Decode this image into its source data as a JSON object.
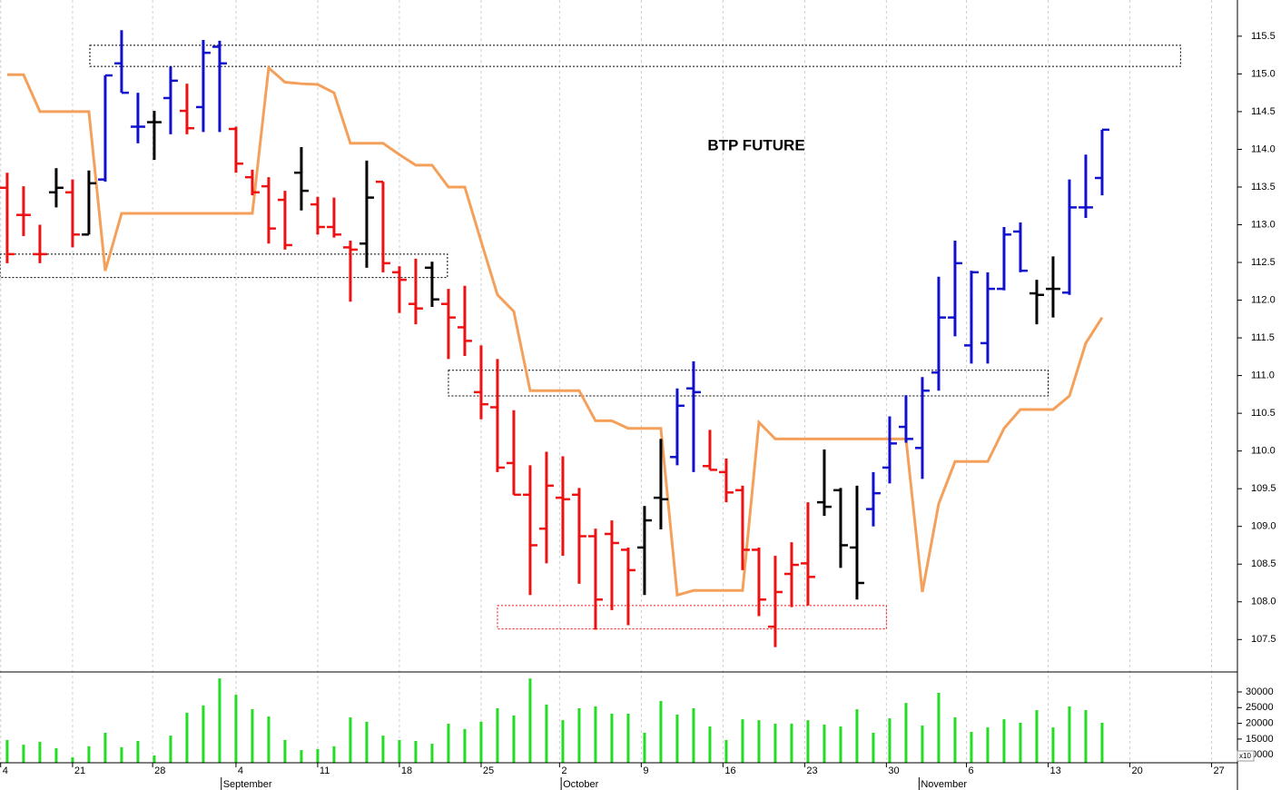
{
  "chart_data": {
    "type": "ohlc",
    "title": "BTP FUTURE",
    "categories": [
      null,
      null,
      null,
      null,
      null,
      null,
      null,
      null,
      null,
      null,
      null,
      null,
      null,
      null,
      null,
      null,
      null,
      null,
      null,
      null,
      null,
      null,
      null,
      null,
      null,
      null,
      null,
      null,
      null,
      null,
      null,
      null,
      null,
      null,
      null,
      null,
      null,
      null,
      null,
      null,
      null,
      null,
      null,
      null,
      null,
      null,
      null,
      null,
      null,
      null,
      null,
      null,
      null,
      null,
      null,
      null,
      null,
      null,
      null,
      null,
      null,
      null,
      null,
      null,
      null,
      null,
      null,
      null
    ],
    "open": [
      113.49,
      113.13,
      112.61,
      113.43,
      113.43,
      112.87,
      113.6,
      115.14,
      114.3,
      114.36,
      114.68,
      114.51,
      114.56,
      115.36,
      114.27,
      113.63,
      113.51,
      113.33,
      113.69,
      113.27,
      112.97,
      112.7,
      112.75,
      113.57,
      112.37,
      111.95,
      112.43,
      111.95,
      111.64,
      110.78,
      110.58,
      109.84,
      109.42,
      108.97,
      109.38,
      109.42,
      108.87,
      108.9,
      108.69,
      108.72,
      109.38,
      109.92,
      110.83,
      109.8,
      109.72,
      109.48,
      108.69,
      107.67,
      108.37,
      108.51,
      109.32,
      109.48,
      108.72,
      109.23,
      109.78,
      110.32,
      110.04,
      111.04,
      111.77,
      111.4,
      111.43,
      112.15,
      112.91,
      112.09,
      112.15,
      112.1,
      113.23,
      113.62
    ],
    "high": [
      113.69,
      113.51,
      113.0,
      113.75,
      113.6,
      113.72,
      114.98,
      115.58,
      114.75,
      114.51,
      115.1,
      114.87,
      115.45,
      115.44,
      114.3,
      113.73,
      113.63,
      113.45,
      114.03,
      113.37,
      113.36,
      112.79,
      113.85,
      113.57,
      112.45,
      112.55,
      112.51,
      112.15,
      112.19,
      111.4,
      111.22,
      110.54,
      109.81,
      109.99,
      109.93,
      109.51,
      108.97,
      109.08,
      108.72,
      109.27,
      110.16,
      110.83,
      111.19,
      110.28,
      109.9,
      109.54,
      108.72,
      108.61,
      108.79,
      109.32,
      110.02,
      109.51,
      109.54,
      109.72,
      110.46,
      110.74,
      110.98,
      112.31,
      112.79,
      112.39,
      112.37,
      112.97,
      113.03,
      112.27,
      112.58,
      113.6,
      113.93,
      114.26
    ],
    "low": [
      112.49,
      112.85,
      112.49,
      113.23,
      112.7,
      112.87,
      113.57,
      114.75,
      114.08,
      113.86,
      114.2,
      114.2,
      114.23,
      114.23,
      113.69,
      113.39,
      112.75,
      112.67,
      113.19,
      112.87,
      112.83,
      111.98,
      112.43,
      112.37,
      111.83,
      111.68,
      111.91,
      111.22,
      111.26,
      110.42,
      109.72,
      109.42,
      108.09,
      108.51,
      108.61,
      108.24,
      107.63,
      107.89,
      107.69,
      108.09,
      108.96,
      109.81,
      109.72,
      109.75,
      109.32,
      108.42,
      107.81,
      107.4,
      107.93,
      107.95,
      109.14,
      108.45,
      108.03,
      109.0,
      109.57,
      110.11,
      109.63,
      110.8,
      111.52,
      111.16,
      111.16,
      112.13,
      112.37,
      111.68,
      111.77,
      112.07,
      113.09,
      113.39
    ],
    "close": [
      112.61,
      113.13,
      112.61,
      113.49,
      112.87,
      113.55,
      114.98,
      114.75,
      114.3,
      114.36,
      114.91,
      114.28,
      115.28,
      115.14,
      113.81,
      113.43,
      112.95,
      112.73,
      113.45,
      112.97,
      112.87,
      112.67,
      113.36,
      112.49,
      112.27,
      111.89,
      112.01,
      111.77,
      111.46,
      110.62,
      109.78,
      109.42,
      108.75,
      109.54,
      109.36,
      108.87,
      108.03,
      108.78,
      108.42,
      109.08,
      109.36,
      110.6,
      110.78,
      109.75,
      109.45,
      108.69,
      108.03,
      108.13,
      108.49,
      108.33,
      109.26,
      108.75,
      108.25,
      109.44,
      110.1,
      110.16,
      110.8,
      111.77,
      112.49,
      112.37,
      112.15,
      112.87,
      112.39,
      112.07,
      112.15,
      113.23,
      113.23,
      114.26
    ],
    "bar_colors": [
      "#ee1111",
      "#ee1111",
      "#ee1111",
      "#000000",
      "#ee1111",
      "#000000",
      "#1111cc",
      "#1111cc",
      "#1111cc",
      "#000000",
      "#1111cc",
      "#ee1111",
      "#1111cc",
      "#1111cc",
      "#ee1111",
      "#ee1111",
      "#ee1111",
      "#ee1111",
      "#000000",
      "#ee1111",
      "#ee1111",
      "#ee1111",
      "#000000",
      "#ee1111",
      "#ee1111",
      "#ee1111",
      "#000000",
      "#ee1111",
      "#ee1111",
      "#ee1111",
      "#ee1111",
      "#ee1111",
      "#ee1111",
      "#ee1111",
      "#ee1111",
      "#ee1111",
      "#ee1111",
      "#ee1111",
      "#ee1111",
      "#000000",
      "#000000",
      "#1111cc",
      "#1111cc",
      "#ee1111",
      "#ee1111",
      "#ee1111",
      "#ee1111",
      "#ee1111",
      "#ee1111",
      "#ee1111",
      "#000000",
      "#000000",
      "#000000",
      "#1111cc",
      "#1111cc",
      "#1111cc",
      "#1111cc",
      "#1111cc",
      "#1111cc",
      "#1111cc",
      "#1111cc",
      "#1111cc",
      "#1111cc",
      "#000000",
      "#000000",
      "#1111cc",
      "#1111cc",
      "#1111cc"
    ],
    "line": {
      "color": "#f5a05a",
      "values": [
        114.99,
        114.99,
        114.5,
        114.5,
        114.5,
        114.5,
        112.39,
        113.15,
        113.15,
        113.15,
        113.15,
        113.15,
        113.15,
        113.15,
        113.15,
        113.15,
        115.08,
        114.89,
        114.87,
        114.86,
        114.75,
        114.08,
        114.08,
        114.08,
        113.93,
        113.79,
        113.79,
        113.5,
        113.5,
        112.78,
        112.07,
        111.85,
        110.8,
        110.8,
        110.8,
        110.8,
        110.4,
        110.4,
        110.3,
        110.3,
        110.3,
        108.09,
        108.15,
        108.15,
        108.15,
        108.15,
        110.38,
        110.16,
        110.16,
        110.16,
        110.16,
        110.16,
        110.16,
        110.16,
        110.16,
        110.16,
        108.13,
        109.3,
        109.86,
        109.86,
        109.86,
        110.3,
        110.55,
        110.55,
        110.55,
        110.73,
        111.43,
        111.77
      ]
    },
    "zones": [
      {
        "x": [
          5.06,
          71.8
        ],
        "y": [
          115.1,
          115.38
        ],
        "color": "#000000"
      },
      {
        "x": [
          -0.44,
          26.94
        ],
        "y": [
          112.3,
          112.61
        ],
        "color": "#000000"
      },
      {
        "x": [
          27.0,
          63.7
        ],
        "y": [
          110.73,
          111.07
        ],
        "color": "#000000"
      },
      {
        "x": [
          30.0,
          53.8
        ],
        "y": [
          107.64,
          107.95
        ],
        "color": "#ee1111"
      }
    ],
    "xlim": [
      -0.44,
      75.28
    ],
    "xticks": [
      {
        "value": -0.4,
        "label": "4"
      },
      {
        "value": 4,
        "label": "21"
      },
      {
        "value": 8.9,
        "label": "28"
      },
      {
        "value": 14,
        "label": "4"
      },
      {
        "value": 19,
        "label": "11"
      },
      {
        "value": 24,
        "label": "18"
      },
      {
        "value": 29,
        "label": "25"
      },
      {
        "value": 33.8,
        "label": "2"
      },
      {
        "value": 38.8,
        "label": "9"
      },
      {
        "value": 43.8,
        "label": "16"
      },
      {
        "value": 48.8,
        "label": "23"
      },
      {
        "value": 53.8,
        "label": "30"
      },
      {
        "value": 58.7,
        "label": "6"
      },
      {
        "value": 63.7,
        "label": "13"
      },
      {
        "value": 68.7,
        "label": "20"
      },
      {
        "value": 73.7,
        "label": "27"
      }
    ],
    "months": [
      {
        "value": 13.1,
        "label": "September"
      },
      {
        "value": 33.9,
        "label": "October"
      },
      {
        "value": 55.8,
        "label": "November"
      }
    ],
    "ylim": [
      107.07,
      115.98
    ],
    "yticks": [
      107.5,
      {
        "value": 108,
        "label": "108.0"
      },
      108.5,
      {
        "value": 109,
        "label": "109.0"
      },
      109.5,
      {
        "value": 110,
        "label": "110.0"
      },
      110.5,
      {
        "value": 111,
        "label": "111.0"
      },
      111.5,
      {
        "value": 112,
        "label": "112.0"
      },
      112.5,
      {
        "value": 113,
        "label": "113.0"
      },
      113.5,
      {
        "value": 114,
        "label": "114.0"
      },
      114.5,
      {
        "value": 115,
        "label": "115.0"
      },
      115.5
    ],
    "grid": true,
    "volume": {
      "type": "bar",
      "color": "#22dd22",
      "multiplier_label": "x10",
      "values": [
        14700,
        13200,
        14100,
        12100,
        9200,
        12700,
        17000,
        12400,
        14400,
        9800,
        16100,
        23400,
        25700,
        34300,
        29100,
        24500,
        22200,
        14700,
        11500,
        11800,
        12700,
        21900,
        20500,
        16100,
        14700,
        14400,
        13500,
        19900,
        18200,
        20500,
        24800,
        22500,
        34300,
        26000,
        21000,
        24800,
        25400,
        23100,
        23100,
        17000,
        27100,
        22800,
        24800,
        19000,
        14700,
        21300,
        21000,
        19900,
        19900,
        21000,
        19600,
        19000,
        24500,
        17000,
        21600,
        26500,
        19300,
        29700,
        21900,
        17300,
        18700,
        21300,
        20200,
        24200,
        18700,
        25400,
        24200,
        20200
      ],
      "ylim": [
        7458,
        35780
      ],
      "yticks": [
        10000,
        15000,
        20000,
        25000,
        30000
      ]
    }
  }
}
